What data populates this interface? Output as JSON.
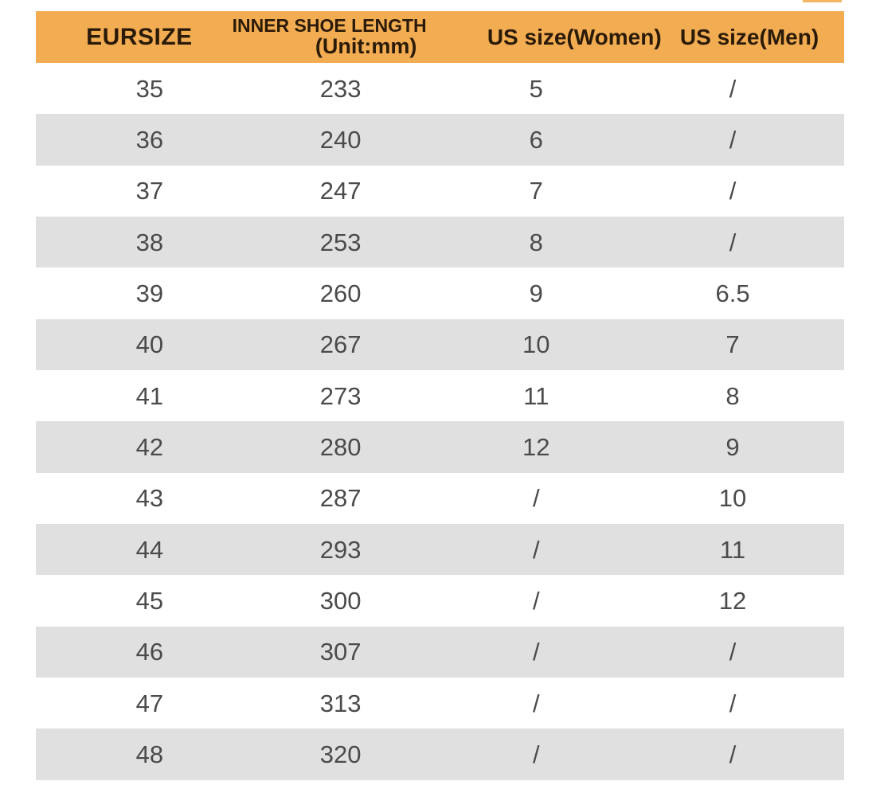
{
  "chart_data": {
    "type": "table",
    "columns": [
      "EURSIZE",
      "INNER SHOE LENGTH (Unit:mm)",
      "US size(Women)",
      "US size(Men)"
    ],
    "rows": [
      [
        "35",
        "233",
        "5",
        "/"
      ],
      [
        "36",
        "240",
        "6",
        "/"
      ],
      [
        "37",
        "247",
        "7",
        "/"
      ],
      [
        "38",
        "253",
        "8",
        "/"
      ],
      [
        "39",
        "260",
        "9",
        "6.5"
      ],
      [
        "40",
        "267",
        "10",
        "7"
      ],
      [
        "41",
        "273",
        "11",
        "8"
      ],
      [
        "42",
        "280",
        "12",
        "9"
      ],
      [
        "43",
        "287",
        "/",
        "10"
      ],
      [
        "44",
        "293",
        "/",
        "11"
      ],
      [
        "45",
        "300",
        "/",
        "12"
      ],
      [
        "46",
        "307",
        "/",
        "/"
      ],
      [
        "47",
        "313",
        "/",
        "/"
      ],
      [
        "48",
        "320",
        "/",
        "/"
      ]
    ]
  },
  "header": {
    "col1": "EURSIZE",
    "col2_line1": "INNER SHOE LENGTH",
    "col2_line2": "(Unit:mm)",
    "col3": "US size(Women)",
    "col4": "US size(Men)"
  },
  "colors": {
    "header_bg": "#F2AC52",
    "header_text": "#2A1A08",
    "row_bg": "#FFFFFF",
    "row_alt_bg": "#E0E0E0",
    "value_text": "#4B4B4B"
  }
}
